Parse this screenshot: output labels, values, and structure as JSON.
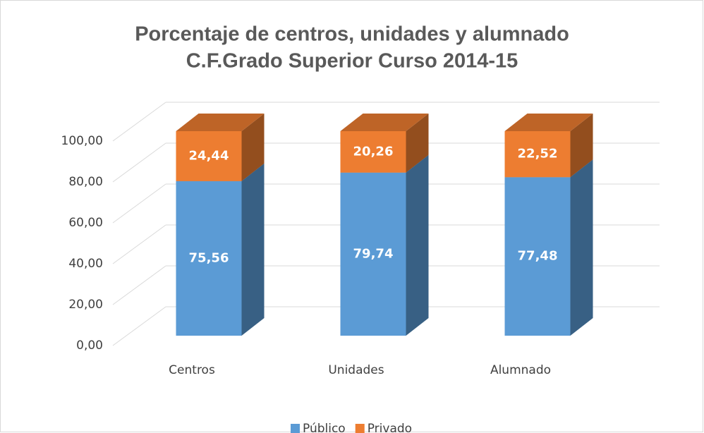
{
  "chart_data": {
    "type": "bar3d_stacked",
    "title": [
      "Porcentaje de centros, unidades y alumnado",
      "C.F.Grado Superior Curso 2014-15"
    ],
    "categories": [
      "Centros",
      "Unidades",
      "Alumnado"
    ],
    "series": [
      {
        "name": "Público",
        "color": "#5b9bd5",
        "values": [
          75.56,
          79.74,
          77.48
        ],
        "value_labels": [
          "75,56",
          "79,74",
          "77,48"
        ]
      },
      {
        "name": "Privado",
        "color": "#ed7d31",
        "values": [
          24.44,
          20.26,
          22.52
        ],
        "value_labels": [
          "24,44",
          "20,26",
          "22,52"
        ]
      }
    ],
    "ylim": [
      0,
      100
    ],
    "yticks": [
      {
        "value": 0,
        "label": "0,00"
      },
      {
        "value": 20,
        "label": "20,00"
      },
      {
        "value": 40,
        "label": "40,00"
      },
      {
        "value": 60,
        "label": "60,00"
      },
      {
        "value": 80,
        "label": "80,00"
      },
      {
        "value": 100,
        "label": "100,00"
      }
    ],
    "grid": true,
    "legend": "bottom"
  }
}
